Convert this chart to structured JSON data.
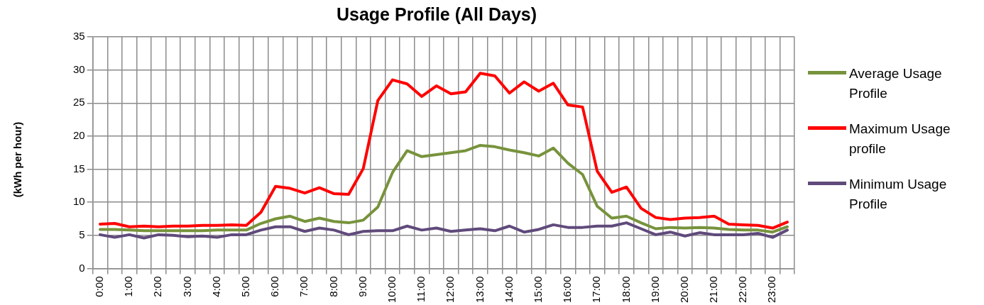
{
  "chart_data": {
    "type": "line",
    "title": "Usage Profile (All Days)",
    "ylabel": "(kWh per hour)",
    "categories": [
      "0:00",
      null,
      "1:00",
      null,
      "2:00",
      null,
      "3:00",
      null,
      "4:00",
      null,
      "5:00",
      null,
      "6:00",
      null,
      "7:00",
      null,
      "8:00",
      null,
      "9:00",
      null,
      "10:00",
      null,
      "11:00",
      null,
      "12:00",
      null,
      "13:00",
      null,
      "14:00",
      null,
      "15:00",
      null,
      "16:00",
      null,
      "17:00",
      null,
      "18:00",
      null,
      "19:00",
      null,
      "20:00",
      null,
      "21:00",
      null,
      "22:00",
      null,
      "23:00",
      null
    ],
    "series": [
      {
        "name": "Average Usage Profile",
        "color": "#77933c",
        "values": [
          5.9,
          5.9,
          5.8,
          5.7,
          5.7,
          5.7,
          5.7,
          5.7,
          5.8,
          5.8,
          5.8,
          6.8,
          7.5,
          7.9,
          7.1,
          7.6,
          7.1,
          6.9,
          7.3,
          9.3,
          14.5,
          17.8,
          16.9,
          17.2,
          17.5,
          17.8,
          18.6,
          18.4,
          17.9,
          17.5,
          17.0,
          18.2,
          15.9,
          14.2,
          9.4,
          7.6,
          7.9,
          6.9,
          6.0,
          6.2,
          6.1,
          6.2,
          6.1,
          5.9,
          5.8,
          5.8,
          5.5,
          6.3
        ]
      },
      {
        "name": "Maximum Usage profile",
        "color": "#ff0000",
        "values": [
          6.7,
          6.8,
          6.3,
          6.4,
          6.3,
          6.4,
          6.4,
          6.5,
          6.5,
          6.6,
          6.5,
          8.5,
          12.4,
          12.1,
          11.4,
          12.2,
          11.3,
          11.2,
          15.1,
          25.4,
          28.5,
          27.9,
          26.0,
          27.6,
          26.4,
          26.7,
          29.5,
          29.1,
          26.5,
          28.2,
          26.8,
          28.0,
          24.7,
          24.4,
          14.7,
          11.5,
          12.3,
          9.1,
          7.7,
          7.4,
          7.6,
          7.7,
          7.9,
          6.7,
          6.6,
          6.5,
          6.1,
          7.0
        ]
      },
      {
        "name": "Minimum Usage Profile",
        "color": "#604a7b",
        "values": [
          5.1,
          4.7,
          5.1,
          4.6,
          5.1,
          5.0,
          4.8,
          4.9,
          4.7,
          5.1,
          5.1,
          5.8,
          6.3,
          6.3,
          5.6,
          6.1,
          5.8,
          5.1,
          5.6,
          5.7,
          5.7,
          6.4,
          5.8,
          6.1,
          5.6,
          5.8,
          6.0,
          5.7,
          6.4,
          5.5,
          5.9,
          6.6,
          6.2,
          6.2,
          6.4,
          6.4,
          6.9,
          6.0,
          5.1,
          5.5,
          4.9,
          5.4,
          5.1,
          5.1,
          5.1,
          5.3,
          4.7,
          5.8
        ]
      }
    ],
    "ylim": [
      0,
      35
    ],
    "yticks": [
      0,
      5,
      10,
      15,
      20,
      25,
      30,
      35
    ],
    "grid": true,
    "legend": "right",
    "marker": "none",
    "line_style": "solid"
  }
}
